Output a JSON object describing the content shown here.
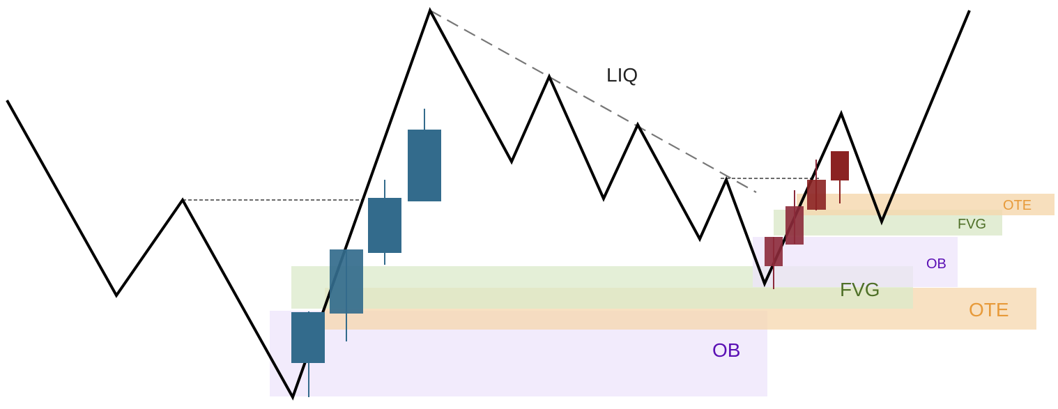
{
  "labels": {
    "liq": "LIQ",
    "ob_large": "OB",
    "fvg_large": "FVG",
    "ote_large": "OTE",
    "ob_small": "OB",
    "fvg_small": "FVG",
    "ote_small": "OTE"
  },
  "colors": {
    "price_line": "#000000",
    "bull_candle": "#336b8c",
    "bear_candle": "#8c2a3a",
    "bear_candle_alt": "#8b2222",
    "ob_zone": "#ede4fb",
    "fvg_zone": "#dbe9c9",
    "ote_zone": "#f5d7ad",
    "ob_text": "#5a0fb4",
    "fvg_text": "#4f7028",
    "ote_text": "#e79a3a",
    "liq_text": "#222222",
    "trendline": "#777777",
    "level_line": "#555555"
  }
}
